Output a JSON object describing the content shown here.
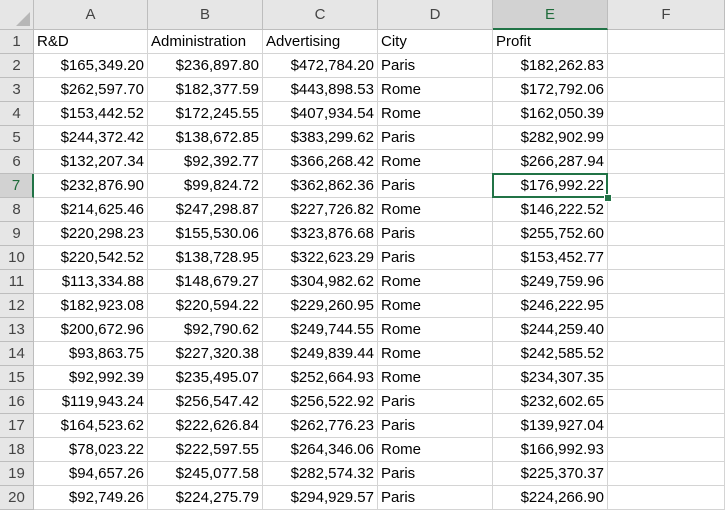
{
  "spreadsheet": {
    "columns": [
      "A",
      "B",
      "C",
      "D",
      "E",
      "F"
    ],
    "selected_cell": {
      "row": 7,
      "col": "E"
    },
    "accent_color": "#217346",
    "header_row": [
      "R&D",
      "Administration",
      "Advertising",
      "City",
      "Profit",
      ""
    ],
    "rows": [
      {
        "n": "2",
        "cells": [
          "$165,349.20",
          "$236,897.80",
          "$472,784.20",
          "Paris",
          "$182,262.83",
          ""
        ]
      },
      {
        "n": "3",
        "cells": [
          "$262,597.70",
          "$182,377.59",
          "$443,898.53",
          "Rome",
          "$172,792.06",
          ""
        ]
      },
      {
        "n": "4",
        "cells": [
          "$153,442.52",
          "$172,245.55",
          "$407,934.54",
          "Rome",
          "$162,050.39",
          ""
        ]
      },
      {
        "n": "5",
        "cells": [
          "$244,372.42",
          "$138,672.85",
          "$383,299.62",
          "Paris",
          "$282,902.99",
          ""
        ]
      },
      {
        "n": "6",
        "cells": [
          "$132,207.34",
          "$92,392.77",
          "$366,268.42",
          "Rome",
          "$266,287.94",
          ""
        ]
      },
      {
        "n": "7",
        "cells": [
          "$232,876.90",
          "$99,824.72",
          "$362,862.36",
          "Paris",
          "$176,992.22",
          ""
        ]
      },
      {
        "n": "8",
        "cells": [
          "$214,625.46",
          "$247,298.87",
          "$227,726.82",
          "Rome",
          "$146,222.52",
          ""
        ]
      },
      {
        "n": "9",
        "cells": [
          "$220,298.23",
          "$155,530.06",
          "$323,876.68",
          "Paris",
          "$255,752.60",
          ""
        ]
      },
      {
        "n": "10",
        "cells": [
          "$220,542.52",
          "$138,728.95",
          "$322,623.29",
          "Paris",
          "$153,452.77",
          ""
        ]
      },
      {
        "n": "11",
        "cells": [
          "$113,334.88",
          "$148,679.27",
          "$304,982.62",
          "Rome",
          "$249,759.96",
          ""
        ]
      },
      {
        "n": "12",
        "cells": [
          "$182,923.08",
          "$220,594.22",
          "$229,260.95",
          "Rome",
          "$246,222.95",
          ""
        ]
      },
      {
        "n": "13",
        "cells": [
          "$200,672.96",
          "$92,790.62",
          "$249,744.55",
          "Rome",
          "$244,259.40",
          ""
        ]
      },
      {
        "n": "14",
        "cells": [
          "$93,863.75",
          "$227,320.38",
          "$249,839.44",
          "Rome",
          "$242,585.52",
          ""
        ]
      },
      {
        "n": "15",
        "cells": [
          "$92,992.39",
          "$235,495.07",
          "$252,664.93",
          "Rome",
          "$234,307.35",
          ""
        ]
      },
      {
        "n": "16",
        "cells": [
          "$119,943.24",
          "$256,547.42",
          "$256,522.92",
          "Paris",
          "$232,602.65",
          ""
        ]
      },
      {
        "n": "17",
        "cells": [
          "$164,523.62",
          "$222,626.84",
          "$262,776.23",
          "Paris",
          "$139,927.04",
          ""
        ]
      },
      {
        "n": "18",
        "cells": [
          "$78,023.22",
          "$222,597.55",
          "$264,346.06",
          "Rome",
          "$166,992.93",
          ""
        ]
      },
      {
        "n": "19",
        "cells": [
          "$94,657.26",
          "$245,077.58",
          "$282,574.32",
          "Paris",
          "$225,370.37",
          ""
        ]
      },
      {
        "n": "20",
        "cells": [
          "$92,749.26",
          "$224,275.79",
          "$294,929.57",
          "Paris",
          "$224,266.90",
          ""
        ]
      }
    ]
  }
}
